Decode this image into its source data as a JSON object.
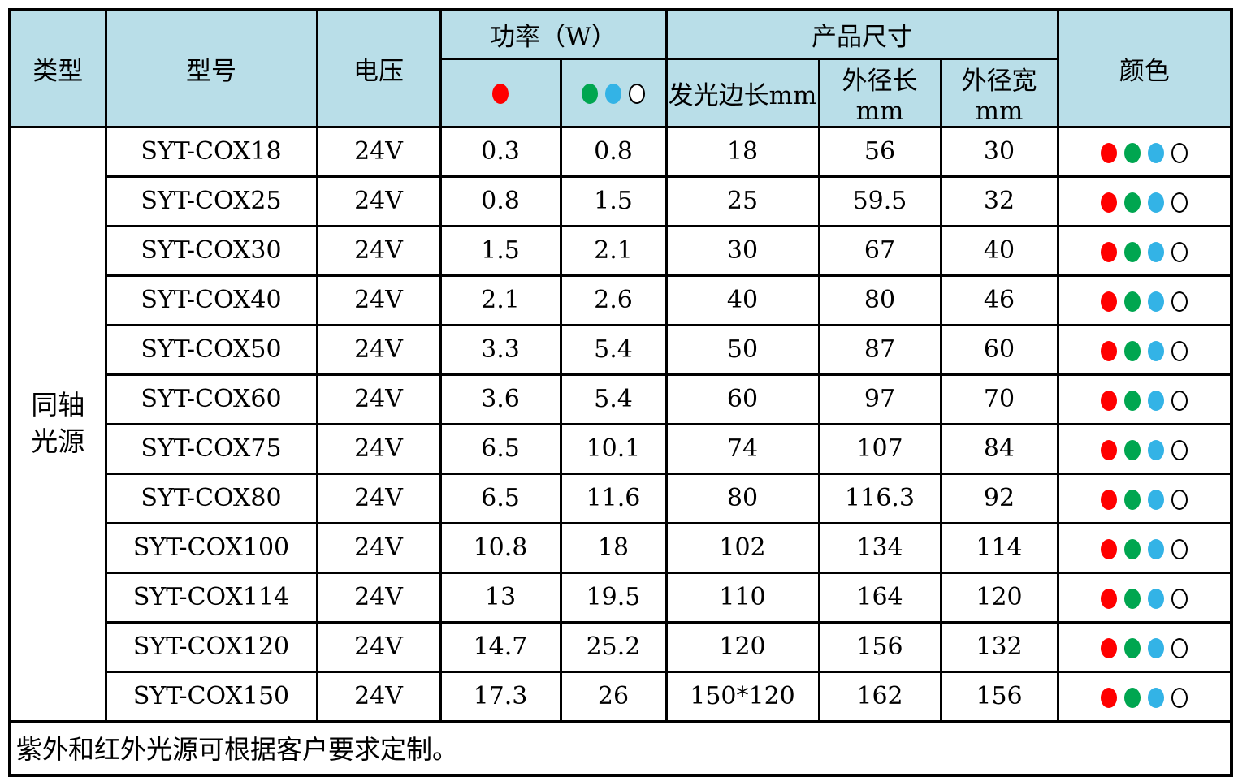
{
  "table": {
    "header": {
      "type": "类型",
      "model": "型号",
      "voltage": "电压",
      "power": "功率（W）",
      "power_red_dots": [
        "red"
      ],
      "power_multi_dots": [
        "green",
        "blue",
        "white"
      ],
      "dimensions": "产品尺寸",
      "dim_emit_side": "发光边长mm",
      "dim_outer_length": "外径长mm",
      "dim_outer_width": "外径宽mm",
      "color": "颜色"
    },
    "category": "同轴光源",
    "category_lines": [
      "同轴",
      "光源"
    ],
    "color_dots": [
      "red",
      "green",
      "blue",
      "white"
    ],
    "rows": [
      {
        "model": "SYT-COX18",
        "voltage": "24V",
        "power_red": "0.3",
        "power_multi": "0.8",
        "emit_side": "18",
        "outer_length": "56",
        "outer_width": "30"
      },
      {
        "model": "SYT-COX25",
        "voltage": "24V",
        "power_red": "0.8",
        "power_multi": "1.5",
        "emit_side": "25",
        "outer_length": "59.5",
        "outer_width": "32"
      },
      {
        "model": "SYT-COX30",
        "voltage": "24V",
        "power_red": "1.5",
        "power_multi": "2.1",
        "emit_side": "30",
        "outer_length": "67",
        "outer_width": "40"
      },
      {
        "model": "SYT-COX40",
        "voltage": "24V",
        "power_red": "2.1",
        "power_multi": "2.6",
        "emit_side": "40",
        "outer_length": "80",
        "outer_width": "46"
      },
      {
        "model": "SYT-COX50",
        "voltage": "24V",
        "power_red": "3.3",
        "power_multi": "5.4",
        "emit_side": "50",
        "outer_length": "87",
        "outer_width": "60"
      },
      {
        "model": "SYT-COX60",
        "voltage": "24V",
        "power_red": "3.6",
        "power_multi": "5.4",
        "emit_side": "60",
        "outer_length": "97",
        "outer_width": "70"
      },
      {
        "model": "SYT-COX75",
        "voltage": "24V",
        "power_red": "6.5",
        "power_multi": "10.1",
        "emit_side": "74",
        "outer_length": "107",
        "outer_width": "84"
      },
      {
        "model": "SYT-COX80",
        "voltage": "24V",
        "power_red": "6.5",
        "power_multi": "11.6",
        "emit_side": "80",
        "outer_length": "116.3",
        "outer_width": "92"
      },
      {
        "model": "SYT-COX100",
        "voltage": "24V",
        "power_red": "10.8",
        "power_multi": "18",
        "emit_side": "102",
        "outer_length": "134",
        "outer_width": "114"
      },
      {
        "model": "SYT-COX114",
        "voltage": "24V",
        "power_red": "13",
        "power_multi": "19.5",
        "emit_side": "110",
        "outer_length": "164",
        "outer_width": "120"
      },
      {
        "model": "SYT-COX120",
        "voltage": "24V",
        "power_red": "14.7",
        "power_multi": "25.2",
        "emit_side": "120",
        "outer_length": "156",
        "outer_width": "132"
      },
      {
        "model": "SYT-COX150",
        "voltage": "24V",
        "power_red": "17.3",
        "power_multi": "26",
        "emit_side": "150*120",
        "outer_length": "162",
        "outer_width": "156"
      }
    ],
    "footer_note": "紫外和红外光源可根据客户要求定制。"
  },
  "colors": {
    "header_bg": "#b9dee8",
    "dot_red": "#ff0000",
    "dot_green": "#00a650",
    "dot_blue": "#33b3e6",
    "dot_white": "#ffffff",
    "border": "#000000"
  }
}
